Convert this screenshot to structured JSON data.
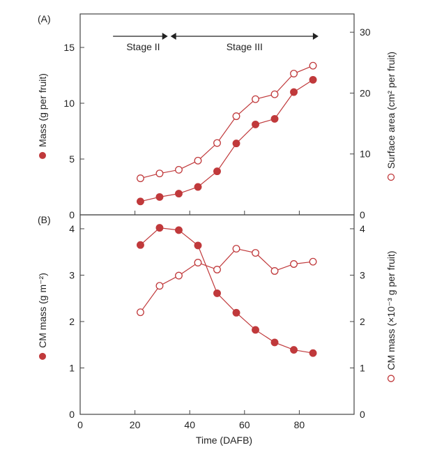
{
  "chart_data": [
    {
      "panel_label": "(A)",
      "type": "line",
      "x": [
        22,
        29,
        36,
        43,
        50,
        57,
        64,
        71,
        78,
        85
      ],
      "xlabel": "Time (DAFB)",
      "xlim": [
        0,
        100
      ],
      "xticks": [
        0,
        20,
        40,
        60,
        80
      ],
      "series": [
        {
          "axis": "left",
          "marker": "filled-circle",
          "values": [
            1.2,
            1.6,
            1.9,
            2.5,
            3.9,
            6.4,
            8.1,
            8.6,
            11.0,
            12.1
          ]
        },
        {
          "axis": "right",
          "marker": "open-circle",
          "values": [
            6.0,
            6.8,
            7.4,
            8.9,
            11.8,
            16.2,
            19.0,
            19.8,
            23.2,
            24.5
          ]
        }
      ],
      "ylabel": "Mass (g per fruit)",
      "ylim": [
        0,
        18
      ],
      "yticks": [
        0,
        5,
        10,
        15
      ],
      "ylabel_right": "Surface area (cm² per fruit)",
      "ylim_right": [
        0,
        33
      ],
      "yticks_right": [
        0,
        10,
        20,
        30
      ],
      "annotations": {
        "stage2": {
          "label": "Stage II",
          "from": 12,
          "to": 32
        },
        "stage3": {
          "label": "Stage III",
          "from": 33,
          "to": 87
        }
      }
    },
    {
      "panel_label": "(B)",
      "type": "line",
      "x": [
        22,
        29,
        36,
        43,
        50,
        57,
        64,
        71,
        78,
        85
      ],
      "xlabel": "Time (DAFB)",
      "xlim": [
        0,
        100
      ],
      "xticks": [
        0,
        20,
        40,
        60,
        80
      ],
      "series": [
        {
          "axis": "left",
          "marker": "filled-circle",
          "values": [
            3.65,
            4.02,
            3.97,
            3.64,
            2.61,
            2.19,
            1.82,
            1.55,
            1.39,
            1.32
          ]
        },
        {
          "axis": "right",
          "marker": "open-circle",
          "values": [
            2.2,
            2.77,
            2.99,
            3.27,
            3.12,
            3.57,
            3.48,
            3.09,
            3.24,
            3.29
          ]
        }
      ],
      "ylabel": "CM mass (g m⁻²)",
      "ylim": [
        0,
        4.3
      ],
      "yticks": [
        0,
        1,
        2,
        3,
        4
      ],
      "ylabel_right": "CM mass (×10⁻³ g per fruit)",
      "ylim_right": [
        0,
        4.3
      ],
      "yticks_right": [
        0,
        1,
        2,
        3,
        4
      ]
    }
  ],
  "colors": {
    "series": "#c0393b",
    "axis": "#444444"
  }
}
